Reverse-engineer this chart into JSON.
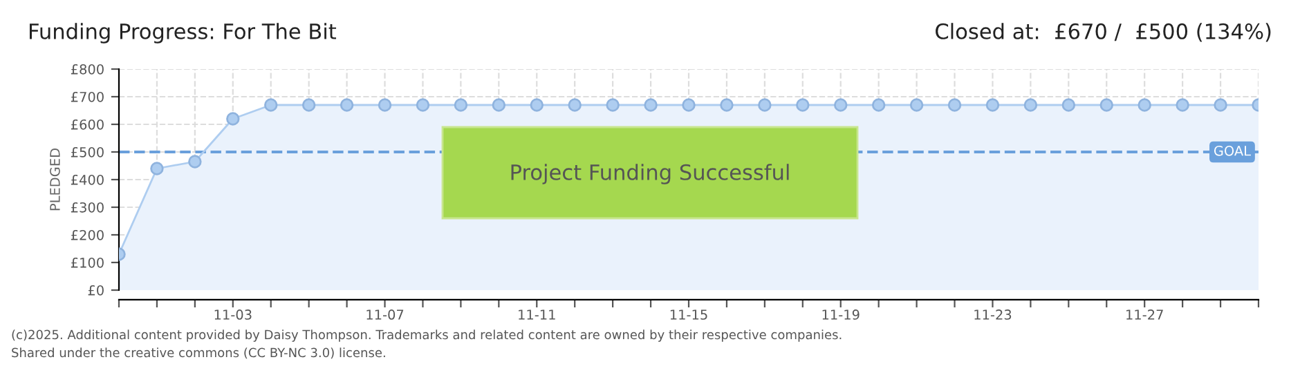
{
  "chart_data": {
    "type": "area",
    "title": "Funding Progress: For The Bit",
    "subtitle": "Closed at:  £670 /  £500 (134%)",
    "ylabel": "PLEDGED",
    "categories": [
      null,
      null,
      null,
      "11-03",
      null,
      null,
      null,
      "11-07",
      null,
      null,
      null,
      "11-11",
      null,
      null,
      null,
      "11-15",
      null,
      null,
      null,
      "11-19",
      null,
      null,
      null,
      "11-23",
      null,
      null,
      null,
      "11-27",
      null,
      null,
      null
    ],
    "series": [
      {
        "color": "#aecdf0",
        "values": [
          130,
          440,
          465,
          620,
          670,
          670,
          670,
          670,
          670,
          670,
          670,
          670,
          670,
          670,
          670,
          670,
          670,
          670,
          670,
          670,
          670,
          670,
          670,
          670,
          670,
          670,
          670,
          670,
          670,
          670,
          670
        ]
      }
    ],
    "ylim": [
      0,
      800
    ],
    "yticks": [
      {
        "value": 0,
        "label": "£0"
      },
      {
        "value": 100,
        "label": "£100"
      },
      {
        "value": 200,
        "label": "£200"
      },
      {
        "value": 300,
        "label": "£300"
      },
      {
        "value": 400,
        "label": "£400"
      },
      {
        "value": 500,
        "label": "£500"
      },
      {
        "value": 600,
        "label": "£600"
      },
      {
        "value": 700,
        "label": "£700"
      },
      {
        "value": 800,
        "label": "£800"
      }
    ],
    "ref_lines": [
      {
        "axis": "y",
        "value": 500,
        "label": "GOAL",
        "color": "#6aa0dc",
        "line_style": "dashed"
      }
    ],
    "annotations": [
      "Project Funding Successful",
      "(c)2025. Additional content provided by Daisy Thompson. Trademarks and related content are owned by their respective companies.",
      "Shared under the creative commons (CC BY-NC 3.0) license."
    ],
    "grid": true,
    "marker": "circle"
  }
}
